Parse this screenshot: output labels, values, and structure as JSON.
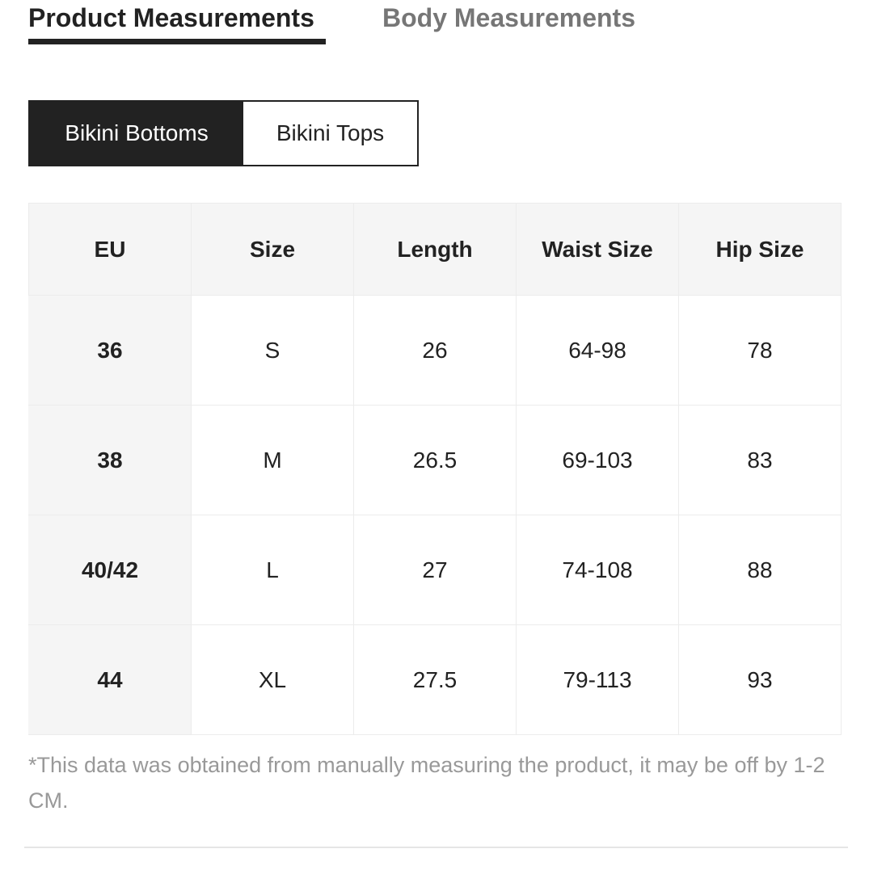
{
  "tabs": {
    "active": "Product Measurements",
    "inactive": "Body Measurements"
  },
  "segments": {
    "selected": "Bikini Bottoms",
    "other": "Bikini Tops"
  },
  "table": {
    "headers": [
      "EU",
      "Size",
      "Length",
      "Waist Size",
      "Hip Size"
    ],
    "rows": [
      [
        "36",
        "S",
        "26",
        "64-98",
        "78"
      ],
      [
        "38",
        "M",
        "26.5",
        "69-103",
        "83"
      ],
      [
        "40/42",
        "L",
        "27",
        "74-108",
        "88"
      ],
      [
        "44",
        "XL",
        "27.5",
        "79-113",
        "93"
      ]
    ]
  },
  "note": "*This data was obtained from manually measuring the product, it may be off by 1-2 CM."
}
